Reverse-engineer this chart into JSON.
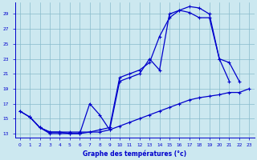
{
  "bg_color": "#cce8f0",
  "line_color": "#0000cc",
  "grid_color": "#88bbcc",
  "xlabel": "Graphe des températures (°c)",
  "ylim": [
    12.5,
    30.5
  ],
  "xlim": [
    -0.5,
    23.5
  ],
  "yticks": [
    13,
    15,
    17,
    19,
    21,
    23,
    25,
    27,
    29
  ],
  "xticks": [
    0,
    1,
    2,
    3,
    4,
    5,
    6,
    7,
    8,
    9,
    10,
    11,
    12,
    13,
    14,
    15,
    16,
    17,
    18,
    19,
    20,
    21,
    22,
    23
  ],
  "series": {
    "line1_x": [
      0,
      1,
      2,
      3,
      4,
      5,
      6,
      7,
      8,
      9,
      10,
      11,
      12,
      13,
      14,
      15,
      16,
      17,
      18,
      19,
      20,
      21
    ],
    "line1_y": [
      16.0,
      15.2,
      13.8,
      13.2,
      13.2,
      13.0,
      13.0,
      13.2,
      13.5,
      13.8,
      20.5,
      21.0,
      21.5,
      22.5,
      26.0,
      28.5,
      29.5,
      30.0,
      29.8,
      29.0,
      23.0,
      20.0
    ],
    "line2_x": [
      0,
      1,
      2,
      3,
      4,
      5,
      6,
      7,
      8,
      9,
      10,
      11,
      12,
      13,
      14,
      15,
      16,
      17,
      18,
      19,
      20,
      21,
      22
    ],
    "line2_y": [
      16.0,
      15.2,
      13.8,
      13.0,
      13.0,
      13.0,
      13.0,
      17.0,
      15.5,
      13.5,
      20.0,
      20.5,
      21.0,
      23.0,
      21.5,
      29.0,
      29.5,
      29.2,
      28.5,
      28.5,
      23.0,
      22.5,
      20.0
    ],
    "line3_x": [
      1,
      2,
      3,
      4,
      5,
      6,
      7,
      8,
      9,
      10,
      11,
      12,
      13,
      14,
      15,
      16,
      17,
      18,
      19,
      20,
      21,
      22,
      23
    ],
    "line3_y": [
      15.2,
      13.8,
      13.2,
      13.2,
      13.2,
      13.2,
      13.2,
      13.2,
      13.5,
      14.0,
      14.5,
      15.0,
      15.5,
      16.0,
      16.5,
      17.0,
      17.5,
      17.8,
      18.0,
      18.2,
      18.5,
      18.5,
      19.0
    ]
  }
}
